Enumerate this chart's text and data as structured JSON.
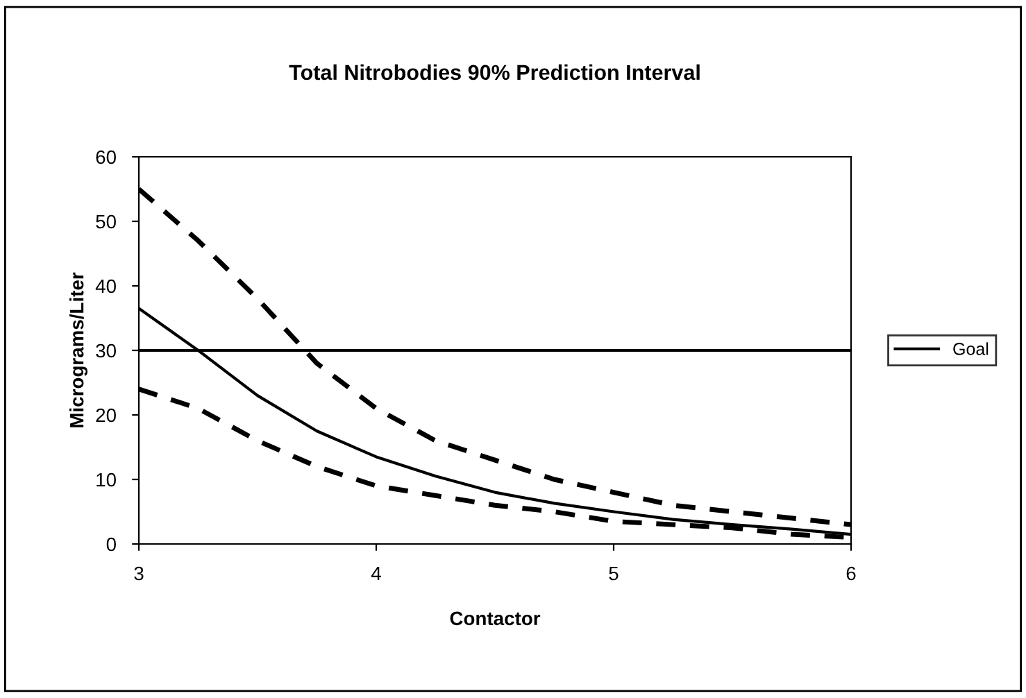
{
  "chart_data": {
    "type": "line",
    "title": "Total Nitrobodies 90% Prediction Interval",
    "xlabel": "Contactor",
    "ylabel": "Micrograms/Liter",
    "x": [
      3,
      3.25,
      3.5,
      3.75,
      4,
      4.25,
      4.5,
      4.75,
      5,
      5.25,
      5.5,
      5.75,
      6
    ],
    "series": [
      {
        "color": "#000000",
        "line_style": "dashed",
        "values": [
          55,
          47,
          38,
          28,
          21,
          16,
          13,
          10,
          8,
          6,
          5,
          4,
          3
        ]
      },
      {
        "color": "#000000",
        "line_style": "solid",
        "values": [
          36.5,
          30,
          23,
          17.5,
          13.5,
          10.5,
          8,
          6.3,
          5,
          3.8,
          3,
          2.3,
          1.5
        ]
      },
      {
        "color": "#000000",
        "line_style": "dashed",
        "values": [
          24,
          21,
          16,
          12,
          9,
          7.5,
          6,
          5,
          3.5,
          3,
          2.5,
          1.5,
          1
        ]
      },
      {
        "name": "Goal",
        "color": "#000000",
        "line_style": "solid",
        "x": [
          3,
          6
        ],
        "values": [
          30,
          30
        ]
      }
    ],
    "xlim": [
      3,
      6
    ],
    "xticks": [
      3,
      4,
      5,
      6
    ],
    "ylim": [
      0,
      60
    ],
    "yticks": [
      0,
      10,
      20,
      30,
      40,
      50,
      60
    ],
    "grid": false,
    "legend": "right",
    "marker": "none"
  }
}
